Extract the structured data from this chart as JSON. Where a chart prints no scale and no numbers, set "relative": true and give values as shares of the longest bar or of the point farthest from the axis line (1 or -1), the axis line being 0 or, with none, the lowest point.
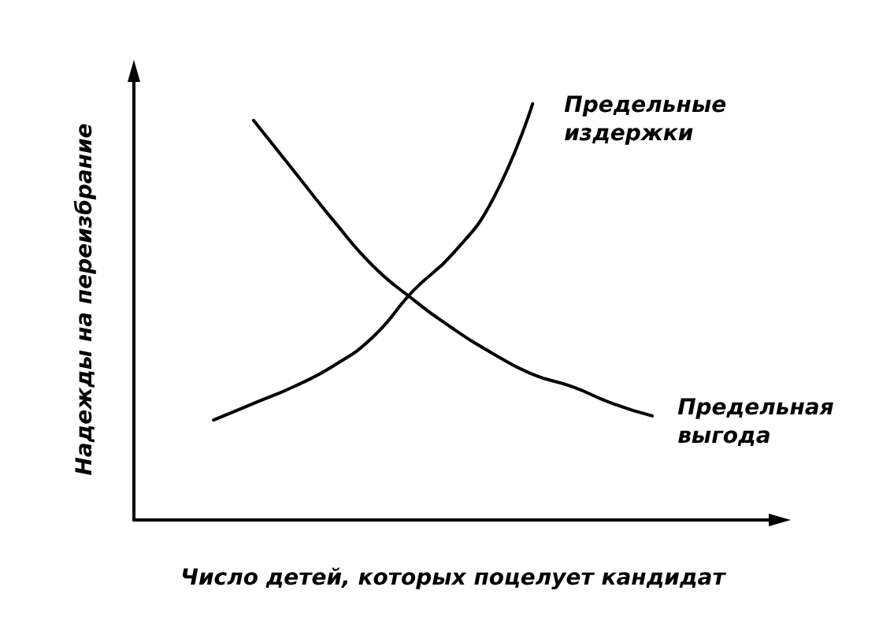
{
  "chart_data": {
    "type": "line",
    "relative": true,
    "xlabel": "Число детей, которых поцелует кандидат",
    "ylabel": "Надежды на переизбрание",
    "marker": "none",
    "grid": false,
    "legend": false,
    "categories": [
      null,
      null,
      null,
      null,
      null,
      null,
      null,
      null,
      null,
      null,
      null,
      null,
      null,
      null,
      null,
      null,
      null
    ],
    "series": [
      {
        "name": "Предельные издержки",
        "color": "#000000",
        "values": [
          null,
          null,
          0.24,
          0.28,
          0.32,
          0.37,
          0.44,
          0.55,
          0.64,
          0.77,
          1,
          null,
          null,
          null,
          null,
          null,
          null
        ]
      },
      {
        "name": "Предельная выгода",
        "color": "#000000",
        "values": [
          null,
          null,
          null,
          0.96,
          0.84,
          0.72,
          0.61,
          0.53,
          0.46,
          0.4,
          0.35,
          0.32,
          0.28,
          0.25,
          null,
          null,
          null
        ]
      }
    ]
  }
}
